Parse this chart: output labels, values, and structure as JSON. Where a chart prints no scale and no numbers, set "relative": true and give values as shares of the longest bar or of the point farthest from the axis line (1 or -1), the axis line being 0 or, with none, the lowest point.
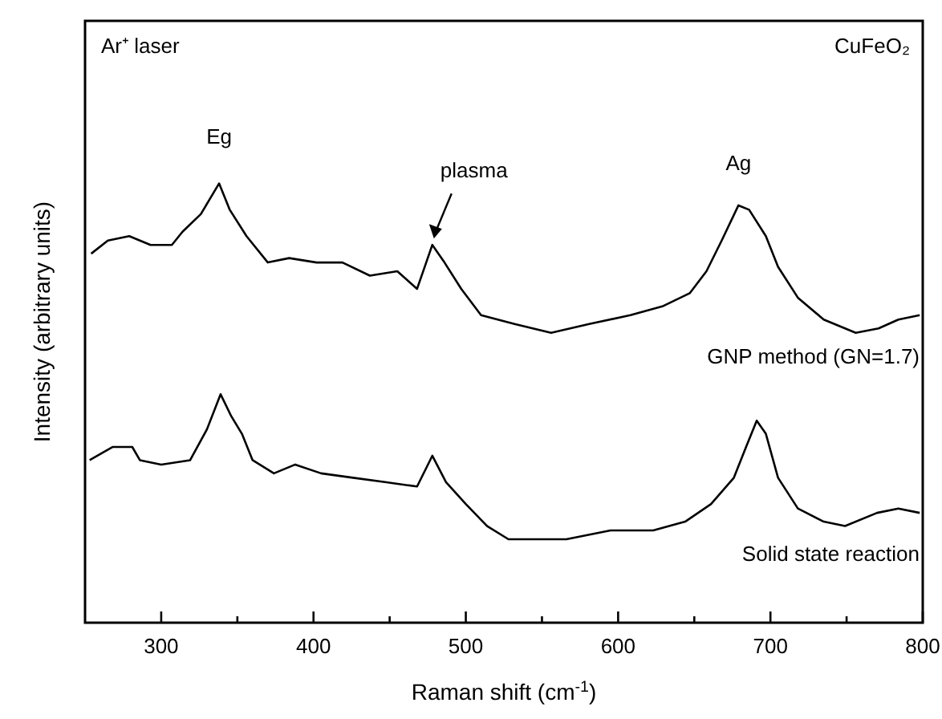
{
  "chart_data": {
    "type": "line",
    "relative": true,
    "xlabel": "Raman shift (cm$^{-1}$)",
    "ylabel": "Intensity (arbitrary units)",
    "xlim": [
      250,
      800
    ],
    "xticks": [
      300,
      {
        "value": 350,
        "label": null
      },
      400,
      {
        "value": 450,
        "label": null
      },
      500,
      {
        "value": 550,
        "label": null
      },
      600,
      {
        "value": 650,
        "label": null
      },
      700,
      {
        "value": 750,
        "label": null
      },
      800
    ],
    "grid": false,
    "line_style": "solid",
    "annotations": [
      "Ar⁺ laser",
      "CuFeO₂",
      {
        "text": "Eg",
        "x": 338,
        "y": 1.0
      },
      {
        "text": "plasma",
        "x": 478,
        "y": 0.86
      },
      {
        "text": "Ag",
        "x": 679,
        "y": 0.95
      }
    ],
    "series": [
      {
        "name": "GNP method (GN=1.7)",
        "color": "#000000",
        "x": [
          254,
          265,
          279,
          293,
          307,
          314,
          326,
          338,
          345,
          356,
          370,
          384,
          402,
          419,
          437,
          455,
          468,
          473,
          478,
          486,
          497,
          510,
          532,
          556,
          581,
          608,
          629,
          647,
          658,
          668,
          679,
          686,
          697,
          705,
          718,
          735,
          756,
          771,
          784,
          798
        ],
        "values": [
          0.84,
          0.87,
          0.88,
          0.86,
          0.86,
          0.89,
          0.93,
          1.0,
          0.94,
          0.88,
          0.82,
          0.83,
          0.82,
          0.82,
          0.79,
          0.8,
          0.76,
          0.81,
          0.86,
          0.82,
          0.76,
          0.7,
          0.68,
          0.66,
          0.68,
          0.7,
          0.72,
          0.75,
          0.8,
          0.87,
          0.95,
          0.94,
          0.88,
          0.81,
          0.74,
          0.69,
          0.66,
          0.67,
          0.69,
          0.7
        ]
      },
      {
        "name": "Solid state reaction",
        "color": "#000000",
        "x": [
          253,
          268,
          281,
          286,
          300,
          319,
          330,
          339,
          346,
          353,
          360,
          374,
          388,
          405,
          426,
          447,
          468,
          478,
          487,
          500,
          514,
          528,
          542,
          566,
          595,
          623,
          644,
          661,
          676,
          684,
          691,
          697,
          705,
          718,
          735,
          749,
          770,
          784,
          798
        ],
        "values": [
          0.37,
          0.4,
          0.4,
          0.37,
          0.36,
          0.37,
          0.44,
          0.52,
          0.47,
          0.43,
          0.37,
          0.34,
          0.36,
          0.34,
          0.33,
          0.32,
          0.31,
          0.38,
          0.32,
          0.27,
          0.22,
          0.19,
          0.19,
          0.19,
          0.21,
          0.21,
          0.23,
          0.27,
          0.33,
          0.4,
          0.46,
          0.43,
          0.33,
          0.26,
          0.23,
          0.22,
          0.25,
          0.26,
          0.25
        ]
      }
    ]
  }
}
